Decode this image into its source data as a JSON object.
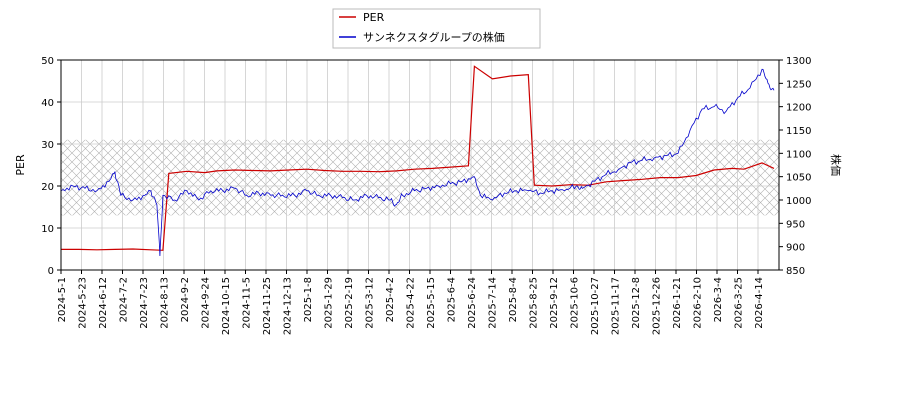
{
  "chart_data": {
    "type": "line",
    "legend": {
      "placement": "top-center",
      "entries": [
        "PER",
        "サンネクスタグループの株価"
      ]
    },
    "x_tick_labels": [
      "2024-5-1",
      "2024-5-23",
      "2024-6-12",
      "2024-7-2",
      "2024-7-23",
      "2024-8-13",
      "2024-9-2",
      "2024-9-24",
      "2024-10-15",
      "2024-11-5",
      "2024-11-25",
      "2024-12-13",
      "2025-1-8",
      "2025-1-29",
      "2025-2-19",
      "2025-3-12",
      "2025-4-2",
      "2025-4-22",
      "2025-5-15",
      "2025-6-4",
      "2025-6-24",
      "2025-7-14",
      "2025-8-4",
      "2025-8-25",
      "2025-9-12",
      "2025-10-6",
      "2025-10-27",
      "2025-11-17",
      "2025-12-8",
      "2025-12-26",
      "2026-1-21",
      "2026-2-10",
      "2026-3-4",
      "2026-3-25",
      "2026-4-14"
    ],
    "ylabel_left": "PER",
    "ylabel_right": "株価",
    "ylim_left": [
      0,
      50
    ],
    "ylim_right": [
      850,
      1300
    ],
    "yticks_left": [
      0,
      10,
      20,
      30,
      40,
      50
    ],
    "yticks_right": [
      850,
      900,
      950,
      1000,
      1050,
      1100,
      1150,
      1200,
      1250,
      1300
    ],
    "grid": true,
    "shaded_band": {
      "axis": "left",
      "from": 13,
      "to": 31
    },
    "series": [
      {
        "name": "PER",
        "axis": "left",
        "color": "#cc0000",
        "values": [
          [
            0,
            4.9
          ],
          [
            3,
            4.9
          ],
          [
            6,
            4.8
          ],
          [
            9,
            4.9
          ],
          [
            12,
            5.0
          ],
          [
            15,
            4.8
          ],
          [
            17,
            4.7
          ],
          [
            18,
            23
          ],
          [
            21,
            23.5
          ],
          [
            24,
            23.2
          ],
          [
            26,
            23.6
          ],
          [
            29,
            23.8
          ],
          [
            32,
            23.7
          ],
          [
            35,
            23.6
          ],
          [
            38,
            23.8
          ],
          [
            41,
            24
          ],
          [
            44,
            23.7
          ],
          [
            47,
            23.5
          ],
          [
            50,
            23.5
          ],
          [
            53,
            23.4
          ],
          [
            56,
            23.6
          ],
          [
            59,
            24
          ],
          [
            62,
            24.2
          ],
          [
            65,
            24.5
          ],
          [
            68,
            24.8
          ],
          [
            69,
            48.5
          ],
          [
            72,
            45.5
          ],
          [
            75,
            46.2
          ],
          [
            78,
            46.5
          ],
          [
            79,
            20.2
          ],
          [
            82,
            20
          ],
          [
            85,
            20.3
          ],
          [
            88,
            20.2
          ],
          [
            91,
            21
          ],
          [
            94,
            21.3
          ],
          [
            97,
            21.6
          ],
          [
            100,
            22
          ],
          [
            103,
            22
          ],
          [
            106,
            22.5
          ],
          [
            109,
            23.8
          ],
          [
            112,
            24.2
          ],
          [
            114,
            24
          ],
          [
            117,
            25.5
          ],
          [
            119,
            24.2
          ]
        ]
      },
      {
        "name": "サンネクスタグループの株価",
        "axis": "right",
        "color": "#0000cc",
        "values": [
          [
            0,
            1020
          ],
          [
            2,
            1030
          ],
          [
            4,
            1025
          ],
          [
            6,
            1020
          ],
          [
            8,
            1040
          ],
          [
            9,
            1060
          ],
          [
            10,
            1010
          ],
          [
            12,
            1000
          ],
          [
            14,
            1010
          ],
          [
            15,
            1020
          ],
          [
            16,
            990
          ],
          [
            16.5,
            880
          ],
          [
            17,
            1010
          ],
          [
            19,
            1000
          ],
          [
            21,
            1020
          ],
          [
            23,
            1000
          ],
          [
            25,
            1020
          ],
          [
            27,
            1020
          ],
          [
            29,
            1025
          ],
          [
            31,
            1010
          ],
          [
            33,
            1015
          ],
          [
            35,
            1010
          ],
          [
            37,
            1010
          ],
          [
            39,
            1010
          ],
          [
            41,
            1020
          ],
          [
            43,
            1010
          ],
          [
            45,
            1010
          ],
          [
            47,
            1005
          ],
          [
            49,
            1000
          ],
          [
            51,
            1010
          ],
          [
            53,
            1005
          ],
          [
            55,
            1000
          ],
          [
            56,
            990
          ],
          [
            57,
            1010
          ],
          [
            59,
            1020
          ],
          [
            61,
            1025
          ],
          [
            63,
            1030
          ],
          [
            65,
            1035
          ],
          [
            67,
            1040
          ],
          [
            69,
            1050
          ],
          [
            70,
            1010
          ],
          [
            72,
            1000
          ],
          [
            74,
            1015
          ],
          [
            76,
            1020
          ],
          [
            78,
            1020
          ],
          [
            80,
            1015
          ],
          [
            82,
            1020
          ],
          [
            84,
            1020
          ],
          [
            86,
            1030
          ],
          [
            87,
            1025
          ],
          [
            89,
            1040
          ],
          [
            91,
            1055
          ],
          [
            93,
            1065
          ],
          [
            95,
            1080
          ],
          [
            97,
            1085
          ],
          [
            99,
            1090
          ],
          [
            101,
            1095
          ],
          [
            103,
            1100
          ],
          [
            105,
            1150
          ],
          [
            107,
            1195
          ],
          [
            109,
            1200
          ],
          [
            111,
            1190
          ],
          [
            113,
            1220
          ],
          [
            115,
            1240
          ],
          [
            117,
            1280
          ],
          [
            118,
            1250
          ],
          [
            119,
            1235
          ]
        ]
      }
    ]
  }
}
